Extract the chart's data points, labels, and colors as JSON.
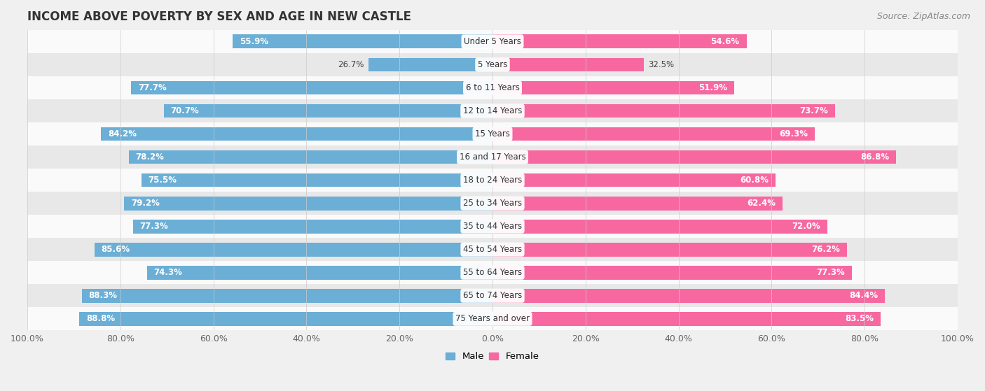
{
  "title": "INCOME ABOVE POVERTY BY SEX AND AGE IN NEW CASTLE",
  "source": "Source: ZipAtlas.com",
  "categories": [
    "Under 5 Years",
    "5 Years",
    "6 to 11 Years",
    "12 to 14 Years",
    "15 Years",
    "16 and 17 Years",
    "18 to 24 Years",
    "25 to 34 Years",
    "35 to 44 Years",
    "45 to 54 Years",
    "55 to 64 Years",
    "65 to 74 Years",
    "75 Years and over"
  ],
  "male_values": [
    55.9,
    26.7,
    77.7,
    70.7,
    84.2,
    78.2,
    75.5,
    79.2,
    77.3,
    85.6,
    74.3,
    88.3,
    88.8
  ],
  "female_values": [
    54.6,
    32.5,
    51.9,
    73.7,
    69.3,
    86.8,
    60.8,
    62.4,
    72.0,
    76.2,
    77.3,
    84.4,
    83.5
  ],
  "male_color": "#6baed6",
  "female_color": "#f768a1",
  "male_label": "Male",
  "female_label": "Female",
  "background_color": "#f0f0f0",
  "row_color_light": "#fafafa",
  "row_color_dark": "#e8e8e8",
  "max_value": 100.0,
  "title_fontsize": 12,
  "label_fontsize": 8.5,
  "value_fontsize": 8.5,
  "tick_fontsize": 9,
  "source_fontsize": 9
}
